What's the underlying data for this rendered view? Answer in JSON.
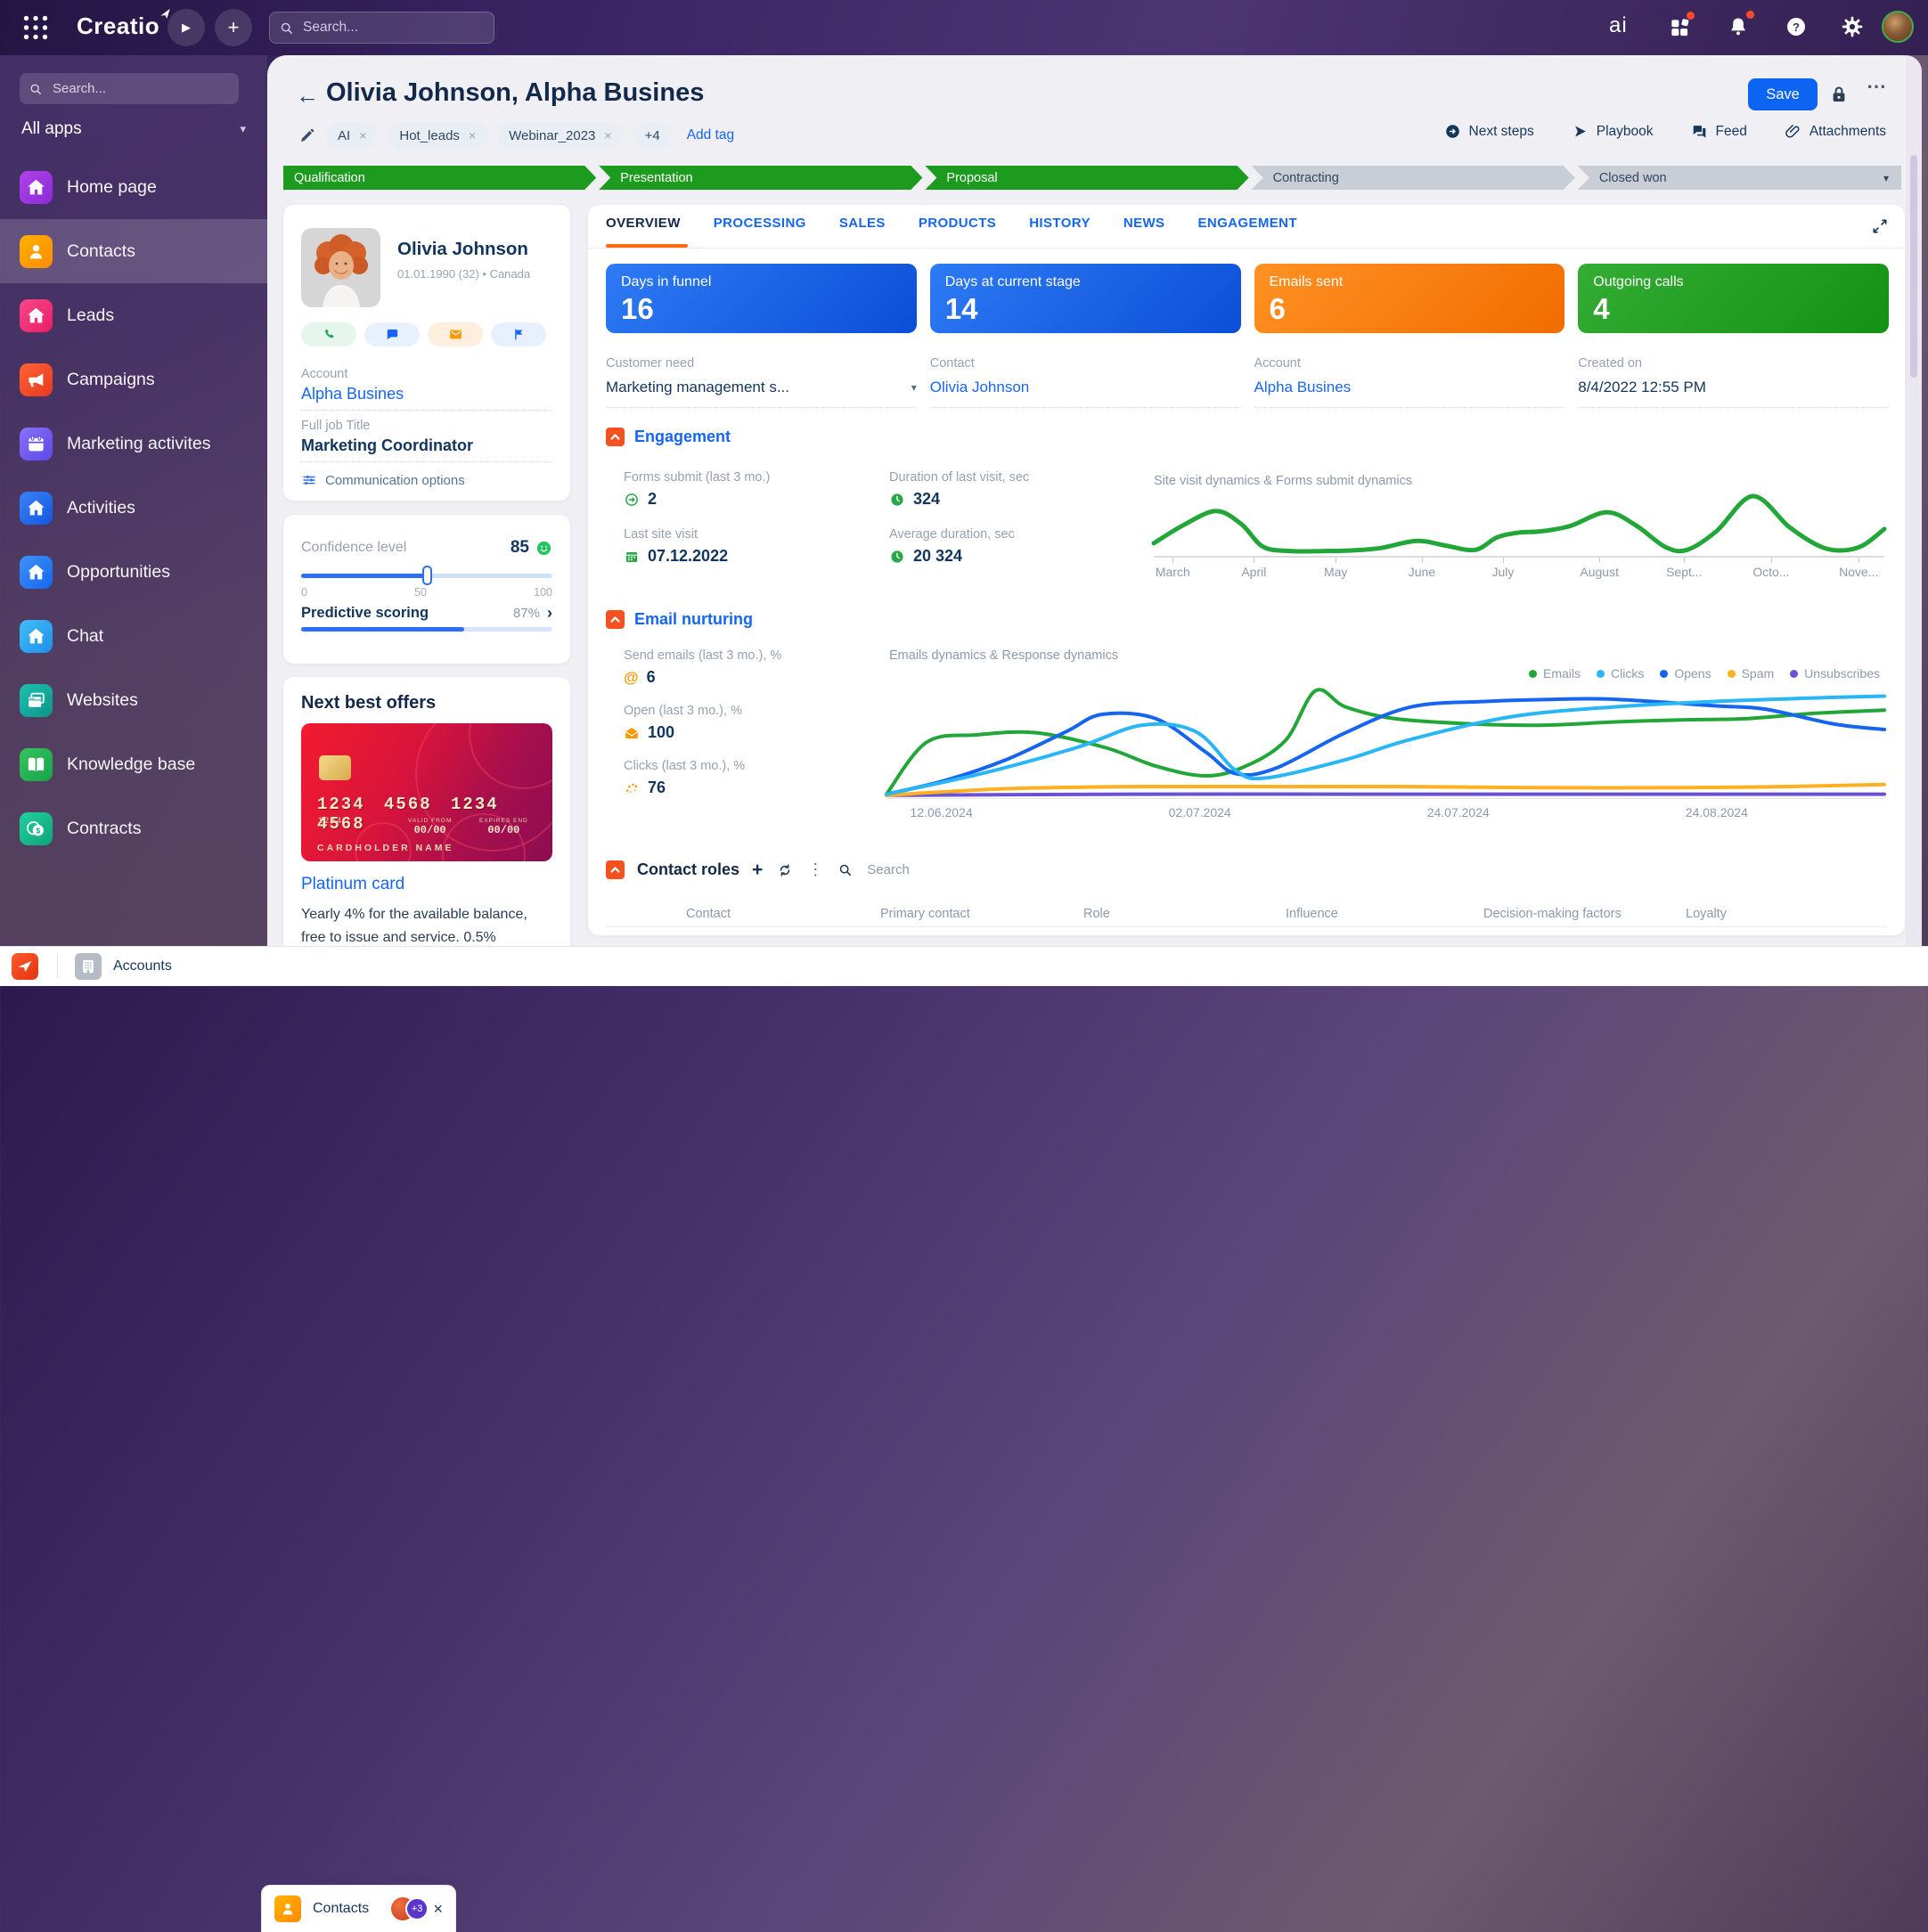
{
  "topbar": {
    "logo": "Creatio",
    "search_placeholder": "Search...",
    "ai_logo": "ai"
  },
  "sidebar": {
    "search_placeholder": "Search...",
    "apps_selector": "All apps",
    "items": [
      {
        "label": "Home page",
        "icon": "house",
        "color1": "#b441e8",
        "color2": "#8a2bd8",
        "active": false
      },
      {
        "label": "Contacts",
        "icon": "person",
        "color1": "#ffb200",
        "color2": "#ff8a00",
        "active": true
      },
      {
        "label": "Leads",
        "icon": "house",
        "color1": "#f8478f",
        "color2": "#e91e63",
        "active": false
      },
      {
        "label": "Campaigns",
        "icon": "megaphone",
        "color1": "#ff6333",
        "color2": "#e6391f",
        "active": false
      },
      {
        "label": "Marketing activites",
        "icon": "calendar",
        "color1": "#8a72f8",
        "color2": "#5c48e8",
        "active": false
      },
      {
        "label": "Activities",
        "icon": "house",
        "color1": "#3b82f7",
        "color2": "#1158e0",
        "active": false
      },
      {
        "label": "Opportunities",
        "icon": "house",
        "color1": "#3f92f5",
        "color2": "#1565f0",
        "active": false
      },
      {
        "label": "Chat",
        "icon": "house",
        "color1": "#45bdf7",
        "color2": "#1d8fe8",
        "active": false
      },
      {
        "label": "Websites",
        "icon": "browser",
        "color1": "#1cc0b2",
        "color2": "#0d9488",
        "active": false
      },
      {
        "label": "Knowledge base",
        "icon": "book",
        "color1": "#36c45e",
        "color2": "#16a34a",
        "active": false
      },
      {
        "label": "Contracts",
        "icon": "coins",
        "color1": "#22cf9f",
        "color2": "#0ca678",
        "active": false
      }
    ]
  },
  "page": {
    "back_icon": "←",
    "title": "Olivia Johnson, Alpha Busines",
    "tags": [
      "AI",
      "Hot_leads",
      "Webinar_2023"
    ],
    "tags_overflow": "+4",
    "add_tag_label": "Add tag",
    "save_label": "Save",
    "menu_icon": "...",
    "actions": [
      {
        "label": "Next steps",
        "icon": "circle-arrow"
      },
      {
        "label": "Playbook",
        "icon": "play"
      },
      {
        "label": "Feed",
        "icon": "feed"
      },
      {
        "label": "Attachments",
        "icon": "paperclip"
      }
    ]
  },
  "pipeline": {
    "done_color": "#1d9b1f",
    "pending_color": "#c9cdd6",
    "stages": [
      {
        "label": "Qualification",
        "state": "done"
      },
      {
        "label": "Presentation",
        "state": "done"
      },
      {
        "label": "Proposal",
        "state": "done"
      },
      {
        "label": "Contracting",
        "state": "pending"
      },
      {
        "label": "Closed won",
        "state": "pending",
        "caret": true
      }
    ]
  },
  "profile": {
    "name": "Olivia Johnson",
    "meta": "01.01.1990 (32) • Canada",
    "account_label": "Account",
    "account_value": "Alpha Busines",
    "job_label": "Full job Title",
    "job_value": "Marketing Coordinator",
    "comm_options_label": "Communication options"
  },
  "confidence": {
    "label": "Confidence level",
    "value": "85",
    "scale": [
      "0",
      "50",
      "100"
    ],
    "slider_pct": 50,
    "predictive_label": "Predictive scoring",
    "predictive_value": "87%",
    "predictive_pct": 65,
    "accent": "#2e6ef5"
  },
  "offers": {
    "title": "Next best offers",
    "card": {
      "number": "1234 4568 1234 4568",
      "small_number": "1234",
      "valid_from_label": "VALID FROM",
      "valid_from": "00/00",
      "expires_label": "EXPIRES END",
      "expires": "00/00",
      "cardholder": "CARDHOLDER NAME"
    },
    "offer_name": "Platinum card",
    "desc_line1": "Yearly 4% for the available balance,",
    "desc_line2": "free to issue and service. 0.5%"
  },
  "content": {
    "tabs": [
      "OVERVIEW",
      "PROCESSING",
      "SALES",
      "PRODUCTS",
      "HISTORY",
      "NEWS",
      "ENGAGEMENT"
    ],
    "active_tab": 0,
    "metrics": [
      {
        "label": "Days in funnel",
        "value": "16",
        "color1": "#2e7bf6",
        "color2": "#0b4ed6"
      },
      {
        "label": "Days at current stage",
        "value": "14",
        "color1": "#2e7bf6",
        "color2": "#0b4ed6"
      },
      {
        "label": "Emails sent",
        "value": "6",
        "color1": "#ff9123",
        "color2": "#f26c00"
      },
      {
        "label": "Outgoing calls",
        "value": "4",
        "color1": "#33ad33",
        "color2": "#149114"
      }
    ],
    "fields": [
      {
        "label": "Customer need",
        "value": "Marketing management s...",
        "type": "dropdown"
      },
      {
        "label": "Contact",
        "value": "Olivia Johnson",
        "type": "link"
      },
      {
        "label": "Account",
        "value": "Alpha Busines",
        "type": "link"
      },
      {
        "label": "Created on",
        "value": "8/4/2022 12:55 PM",
        "type": "text"
      }
    ],
    "engagement": {
      "title": "Engagement",
      "icon_color": "#27a844",
      "fields": [
        {
          "label": "Forms submit (last 3 mo.)",
          "value": "2",
          "icon": "arrow-circle"
        },
        {
          "label": "Duration of last visit, sec",
          "value": "324",
          "icon": "clock"
        },
        {
          "label": "Last site visit",
          "value": "07.12.2022",
          "icon": "calendar-small"
        },
        {
          "label": "Average duration, sec",
          "value": "20 324",
          "icon": "clock"
        }
      ]
    },
    "email_nurturing": {
      "title": "Email nurturing",
      "icon_color": "#ff9500",
      "fields": [
        {
          "label": "Send emails (last 3 mo.), %",
          "value": "6",
          "icon": "at"
        },
        {
          "label": "Open (last 3 mo.), %",
          "value": "100",
          "icon": "mail-open"
        },
        {
          "label": "Clicks (last 3 mo.), %",
          "value": "76",
          "icon": "click-dots"
        }
      ]
    },
    "contact_roles": {
      "title": "Contact roles",
      "search_placeholder": "Search",
      "columns": [
        "Contact",
        "Primary contact",
        "Role",
        "Influence",
        "Decision-making factors",
        "Loyalty"
      ]
    }
  },
  "taskbar": {
    "app_tabs": [
      {
        "label": "Accounts",
        "active": false
      },
      {
        "label": "Contacts",
        "active": true,
        "badge": "+3"
      }
    ]
  },
  "chart_data": [
    {
      "type": "line",
      "title": "Site visit dynamics & Forms submit dynamics",
      "xlabel": "",
      "ylabel": "",
      "x_ticks": [
        "March",
        "April",
        "May",
        "June",
        "July",
        "August",
        "Sept...",
        "Octo...",
        "Nove..."
      ],
      "x_tick_pct": [
        2.6,
        13.7,
        24.9,
        36.7,
        47.8,
        61,
        72.6,
        84.5,
        96.5
      ],
      "ylim": [
        0,
        100
      ],
      "grid": false,
      "legend_position": "none",
      "series": [
        {
          "name": "Site visits",
          "color": "#21a637",
          "points": [
            [
              0,
              18
            ],
            [
              4,
              48
            ],
            [
              8.5,
              72
            ],
            [
              12,
              50
            ],
            [
              15,
              12
            ],
            [
              19,
              5
            ],
            [
              23,
              5
            ],
            [
              27,
              6
            ],
            [
              31,
              10
            ],
            [
              36,
              22
            ],
            [
              40,
              14
            ],
            [
              44,
              7
            ],
            [
              47,
              28
            ],
            [
              50,
              36
            ],
            [
              53,
              38
            ],
            [
              57,
              47
            ],
            [
              62,
              70
            ],
            [
              66,
              48
            ],
            [
              70,
              12
            ],
            [
              73,
              7
            ],
            [
              77,
              38
            ],
            [
              82,
              97
            ],
            [
              87,
              45
            ],
            [
              91,
              14
            ],
            [
              94,
              6
            ],
            [
              97,
              14
            ],
            [
              100,
              42
            ]
          ]
        }
      ]
    },
    {
      "type": "line",
      "title": "Emails dynamics & Response dynamics",
      "xlabel": "",
      "ylabel": "",
      "x_ticks": [
        "12.06.2024",
        "02.07.2024",
        "24.07.2024",
        "24.08.2024"
      ],
      "x_tick_pct": [
        5.5,
        31.4,
        57.3,
        83.2
      ],
      "ylim": [
        0,
        100
      ],
      "grid": false,
      "legend_position": "top-right",
      "draw_order": [
        4,
        3,
        0,
        2,
        1
      ],
      "series": [
        {
          "name": "Emails",
          "color": "#21a637",
          "points": [
            [
              0,
              2
            ],
            [
              4,
              50
            ],
            [
              9,
              57
            ],
            [
              15,
              59
            ],
            [
              22,
              45
            ],
            [
              27,
              28
            ],
            [
              32,
              19
            ],
            [
              36,
              28
            ],
            [
              40,
              52
            ],
            [
              43,
              98
            ],
            [
              46,
              83
            ],
            [
              51,
              72
            ],
            [
              59,
              67
            ],
            [
              66,
              66
            ],
            [
              73,
              69
            ],
            [
              80,
              71
            ],
            [
              86,
              72
            ],
            [
              93,
              77
            ],
            [
              100,
              80
            ]
          ]
        },
        {
          "name": "Clicks",
          "color": "#29b6f6",
          "points": [
            [
              0,
              2
            ],
            [
              9.5,
              21
            ],
            [
              19,
              45
            ],
            [
              25.6,
              66
            ],
            [
              31,
              60
            ],
            [
              35,
              24
            ],
            [
              38,
              17
            ],
            [
              46,
              34
            ],
            [
              52.6,
              53
            ],
            [
              62.7,
              74
            ],
            [
              73,
              83
            ],
            [
              83,
              88
            ],
            [
              92,
              91
            ],
            [
              100,
              93
            ]
          ]
        },
        {
          "name": "Opens",
          "color": "#1565f0",
          "points": [
            [
              0,
              2
            ],
            [
              6,
              15
            ],
            [
              12,
              34
            ],
            [
              18,
              60
            ],
            [
              21.6,
              76
            ],
            [
              27,
              72
            ],
            [
              32,
              41
            ],
            [
              35,
              21
            ],
            [
              39,
              26
            ],
            [
              46,
              59
            ],
            [
              52.6,
              83
            ],
            [
              60,
              88
            ],
            [
              67,
              90
            ],
            [
              73,
              90
            ],
            [
              83,
              84
            ],
            [
              88,
              81
            ],
            [
              95,
              67
            ],
            [
              100,
              62
            ]
          ]
        },
        {
          "name": "Spam",
          "color": "#ffb020",
          "points": [
            [
              0,
              1
            ],
            [
              12,
              7
            ],
            [
              25,
              9
            ],
            [
              40,
              9
            ],
            [
              52,
              9
            ],
            [
              65,
              8
            ],
            [
              80,
              8
            ],
            [
              90,
              9
            ],
            [
              100,
              11
            ]
          ]
        },
        {
          "name": "Unsubscribes",
          "color": "#6a52d3",
          "points": [
            [
              0,
              1
            ],
            [
              25,
              2
            ],
            [
              50,
              2
            ],
            [
              75,
              2
            ],
            [
              100,
              2
            ]
          ]
        }
      ]
    }
  ]
}
